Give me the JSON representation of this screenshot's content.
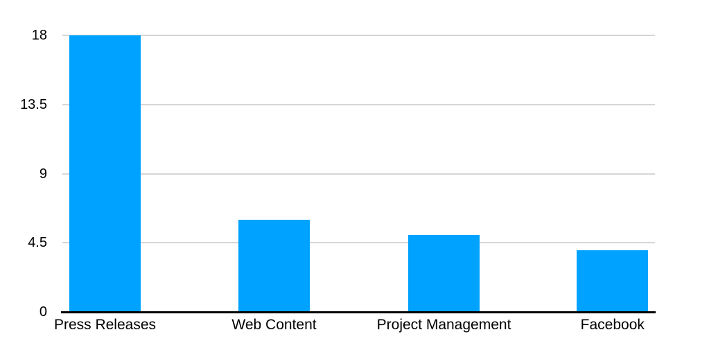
{
  "chart_data": {
    "type": "bar",
    "title": "",
    "xlabel": "",
    "ylabel": "",
    "categories": [
      "Press Releases",
      "Web Content",
      "Project Management",
      "Facebook"
    ],
    "values": [
      18,
      6,
      5,
      4
    ],
    "ylim": [
      0,
      18
    ],
    "yticks": [
      0,
      4.5,
      9,
      13.5,
      18
    ],
    "ytick_labels": [
      "0",
      "4.5",
      "9",
      "13.5",
      "18"
    ],
    "grid": true,
    "legend": false,
    "colors": {
      "bar": "#00A2FF",
      "gridline": "#d6d6d6",
      "axis_line": "#000000",
      "text": "#000000",
      "background": "#ffffff"
    },
    "layout": {
      "bar_center_fractions": [
        0.0719,
        0.3573,
        0.6439,
        0.9284
      ],
      "bar_width_fraction": 0.1205
    }
  }
}
